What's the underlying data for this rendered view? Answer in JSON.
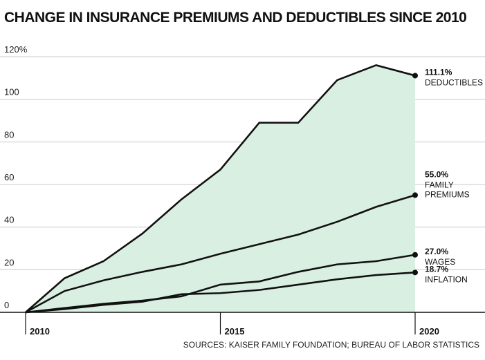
{
  "title": "CHANGE IN INSURANCE PREMIUMS AND DEDUCTIBLES SINCE 2010",
  "source": "SOURCES: KAISER FAMILY FOUNDATION; BUREAU OF LABOR STATISTICS",
  "colors": {
    "fill": "#d9efe2",
    "line": "#111111",
    "grid": "#c8c8c8"
  },
  "chart_data": {
    "type": "line",
    "x": [
      2010,
      2011,
      2012,
      2013,
      2014,
      2015,
      2016,
      2017,
      2018,
      2019,
      2020
    ],
    "xticks": [
      "2010",
      "2015",
      "2020"
    ],
    "yticks": [
      "120%",
      "100",
      "80",
      "60",
      "40",
      "20",
      "0"
    ],
    "ylim": [
      0,
      120
    ],
    "grid": true,
    "shaded_series": "deductibles",
    "series": [
      {
        "key": "deductibles",
        "pct": "111.1%",
        "label": [
          "DEDUCTIBLES"
        ],
        "values": [
          0,
          16,
          24,
          37,
          53,
          67,
          89,
          89,
          109,
          116,
          111.1
        ]
      },
      {
        "key": "premiums",
        "pct": "55.0%",
        "label": [
          "FAMILY",
          "PREMIUMS"
        ],
        "values": [
          0,
          10,
          15,
          19,
          22.5,
          27.5,
          32,
          36.5,
          42.5,
          49.5,
          55.0
        ]
      },
      {
        "key": "wages",
        "pct": "27.0%",
        "label": [
          "WAGES"
        ],
        "values": [
          0,
          2,
          4,
          5.5,
          7.5,
          13,
          14.5,
          19,
          22.5,
          24,
          27.0
        ]
      },
      {
        "key": "inflation",
        "pct": "18.7%",
        "label": [
          "INFLATION"
        ],
        "values": [
          0,
          1.5,
          3.5,
          5,
          8.5,
          9,
          10.5,
          13,
          15.5,
          17.5,
          18.7
        ]
      }
    ]
  }
}
